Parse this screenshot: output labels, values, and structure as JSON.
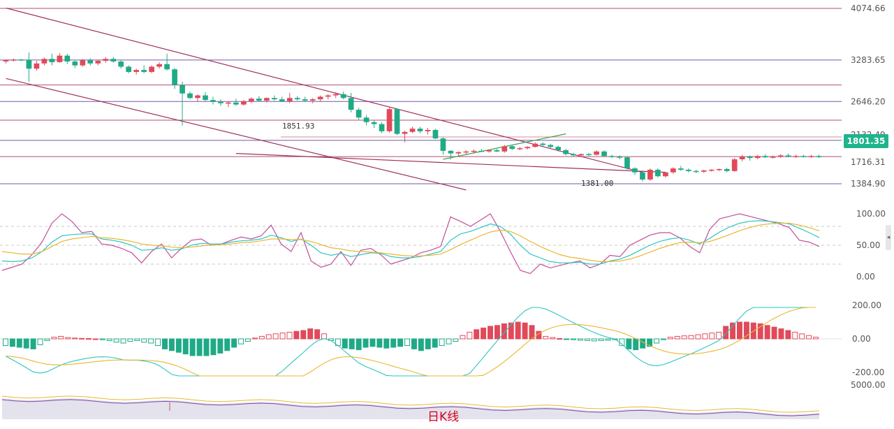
{
  "chart_data": [
    {
      "type": "candlestick",
      "title": "日K线",
      "y_axis_ticks": [
        "4074.66",
        "3283.65",
        "2646.20",
        "2132.49",
        "1716.31",
        "1384.90"
      ],
      "current_price": "1801.35",
      "annotations": {
        "high_level": "1851.93",
        "low_point": "1381.00"
      },
      "horizontal_levels": [
        4074.66,
        3283.65,
        2900,
        2646.2,
        2360,
        2050,
        1801.35,
        1384.9
      ],
      "candles": [
        [
          3260,
          3290,
          3230,
          3280
        ],
        [
          3280,
          3305,
          3260,
          3290
        ],
        [
          3290,
          3300,
          3270,
          3285
        ],
        [
          3285,
          3400,
          2950,
          3150
        ],
        [
          3150,
          3270,
          3120,
          3230
        ],
        [
          3230,
          3320,
          3200,
          3300
        ],
        [
          3300,
          3380,
          3200,
          3250
        ],
        [
          3250,
          3390,
          3240,
          3350
        ],
        [
          3350,
          3380,
          3220,
          3260
        ],
        [
          3260,
          3290,
          3160,
          3200
        ],
        [
          3200,
          3300,
          3180,
          3280
        ],
        [
          3280,
          3310,
          3200,
          3230
        ],
        [
          3230,
          3290,
          3200,
          3270
        ],
        [
          3270,
          3330,
          3240,
          3300
        ],
        [
          3300,
          3330,
          3240,
          3260
        ],
        [
          3260,
          3290,
          3150,
          3180
        ],
        [
          3180,
          3200,
          3080,
          3100
        ],
        [
          3100,
          3150,
          3060,
          3130
        ],
        [
          3130,
          3200,
          3080,
          3100
        ],
        [
          3100,
          3200,
          3080,
          3180
        ],
        [
          3180,
          3250,
          3150,
          3220
        ],
        [
          3220,
          3380,
          3120,
          3140
        ],
        [
          3140,
          3160,
          2840,
          2900
        ],
        [
          2900,
          2950,
          2280,
          2770
        ],
        [
          2770,
          2800,
          2680,
          2700
        ],
        [
          2700,
          2760,
          2650,
          2740
        ],
        [
          2740,
          2790,
          2650,
          2670
        ],
        [
          2670,
          2720,
          2600,
          2640
        ],
        [
          2640,
          2680,
          2580,
          2620
        ],
        [
          2620,
          2650,
          2560,
          2630
        ],
        [
          2630,
          2690,
          2580,
          2600
        ],
        [
          2600,
          2670,
          2580,
          2650
        ],
        [
          2650,
          2710,
          2620,
          2690
        ],
        [
          2690,
          2730,
          2640,
          2660
        ],
        [
          2660,
          2710,
          2630,
          2700
        ],
        [
          2700,
          2740,
          2660,
          2680
        ],
        [
          2680,
          2720,
          2640,
          2650
        ],
        [
          2650,
          2780,
          2620,
          2700
        ],
        [
          2700,
          2730,
          2660,
          2680
        ],
        [
          2680,
          2720,
          2640,
          2660
        ],
        [
          2660,
          2700,
          2620,
          2680
        ],
        [
          2680,
          2740,
          2650,
          2720
        ],
        [
          2720,
          2760,
          2680,
          2740
        ],
        [
          2740,
          2790,
          2700,
          2760
        ],
        [
          2760,
          2800,
          2680,
          2700
        ],
        [
          2700,
          2780,
          2480,
          2520
        ],
        [
          2520,
          2550,
          2360,
          2400
        ],
        [
          2400,
          2440,
          2280,
          2330
        ],
        [
          2330,
          2360,
          2240,
          2300
        ],
        [
          2300,
          2330,
          2160,
          2190
        ],
        [
          2190,
          2560,
          2170,
          2530
        ],
        [
          2530,
          2540,
          2130,
          2150
        ],
        [
          2150,
          2200,
          2020,
          2180
        ],
        [
          2180,
          2260,
          2160,
          2230
        ],
        [
          2230,
          2260,
          2160,
          2190
        ],
        [
          2190,
          2240,
          2140,
          2210
        ],
        [
          2210,
          2230,
          2070,
          2080
        ],
        [
          2080,
          2100,
          1830,
          1890
        ],
        [
          1890,
          1900,
          1760,
          1850
        ],
        [
          1850,
          1880,
          1810,
          1870
        ],
        [
          1870,
          1900,
          1840,
          1880
        ],
        [
          1880,
          1910,
          1850,
          1890
        ],
        [
          1890,
          1920,
          1870,
          1880
        ],
        [
          1880,
          1910,
          1860,
          1900
        ],
        [
          1900,
          1920,
          1870,
          1880
        ],
        [
          1880,
          1980,
          1860,
          1960
        ],
        [
          1960,
          1980,
          1900,
          1920
        ],
        [
          1920,
          1950,
          1900,
          1930
        ],
        [
          1930,
          1960,
          1910,
          1950
        ],
        [
          1950,
          2020,
          1940,
          2000
        ],
        [
          2000,
          2020,
          1960,
          1980
        ],
        [
          1980,
          2000,
          1930,
          1950
        ],
        [
          1950,
          1970,
          1880,
          1900
        ],
        [
          1900,
          1920,
          1820,
          1840
        ],
        [
          1840,
          1860,
          1800,
          1820
        ],
        [
          1820,
          1850,
          1800,
          1840
        ],
        [
          1840,
          1860,
          1810,
          1830
        ],
        [
          1830,
          1900,
          1820,
          1880
        ],
        [
          1880,
          1900,
          1800,
          1810
        ],
        [
          1810,
          1830,
          1780,
          1800
        ],
        [
          1800,
          1820,
          1760,
          1790
        ],
        [
          1790,
          1800,
          1600,
          1620
        ],
        [
          1620,
          1640,
          1520,
          1560
        ],
        [
          1560,
          1590,
          1420,
          1450
        ],
        [
          1450,
          1620,
          1430,
          1600
        ],
        [
          1600,
          1620,
          1480,
          1500
        ],
        [
          1500,
          1570,
          1480,
          1560
        ],
        [
          1560,
          1640,
          1540,
          1620
        ],
        [
          1620,
          1660,
          1580,
          1600
        ],
        [
          1600,
          1620,
          1560,
          1580
        ],
        [
          1580,
          1600,
          1550,
          1570
        ],
        [
          1570,
          1600,
          1550,
          1590
        ],
        [
          1590,
          1610,
          1570,
          1600
        ],
        [
          1600,
          1620,
          1580,
          1610
        ],
        [
          1610,
          1630,
          1560,
          1580
        ],
        [
          1580,
          1780,
          1570,
          1760
        ],
        [
          1760,
          1830,
          1730,
          1800
        ],
        [
          1800,
          1820,
          1740,
          1780
        ],
        [
          1780,
          1830,
          1760,
          1810
        ],
        [
          1810,
          1840,
          1780,
          1790
        ],
        [
          1790,
          1820,
          1770,
          1800
        ],
        [
          1800,
          1840,
          1780,
          1820
        ],
        [
          1820,
          1850,
          1790,
          1800
        ],
        [
          1800,
          1830,
          1780,
          1810
        ],
        [
          1810,
          1830,
          1790,
          1800
        ],
        [
          1800,
          1830,
          1780,
          1810
        ],
        [
          1810,
          1830,
          1780,
          1800
        ]
      ],
      "trendlines": [
        {
          "from": [
            0,
            4080
          ],
          "to": [
            83,
            1560
          ]
        },
        {
          "from": [
            0,
            3000
          ],
          "to": [
            60,
            1290
          ]
        },
        {
          "from": [
            30,
            1850
          ],
          "to": [
            86,
            1560
          ]
        },
        {
          "from": [
            57,
            1760
          ],
          "to": [
            73,
            2150
          ]
        }
      ]
    },
    {
      "type": "line",
      "name": "KDJ",
      "y_axis_ticks": [
        "100.00",
        "50.00",
        "0.00"
      ],
      "ylim": [
        0,
        100
      ],
      "reference_lines": [
        20,
        50,
        80
      ],
      "series": [
        {
          "color": "#c0509a",
          "values": [
            10,
            15,
            20,
            35,
            55,
            85,
            100,
            88,
            70,
            72,
            52,
            50,
            45,
            38,
            22,
            40,
            52,
            30,
            45,
            58,
            60,
            50,
            52,
            58,
            63,
            60,
            65,
            82,
            52,
            40,
            70,
            25,
            15,
            20,
            40,
            18,
            42,
            45,
            35,
            20,
            25,
            30,
            38,
            42,
            48,
            95,
            88,
            80,
            90,
            100,
            72,
            40,
            10,
            5,
            20,
            14,
            18,
            22,
            25,
            14,
            20,
            34,
            32,
            50,
            58,
            66,
            70,
            70,
            62,
            48,
            38,
            75,
            92,
            96,
            100,
            96,
            92,
            88,
            84,
            78,
            58,
            55,
            48
          ]
        },
        {
          "color": "#2ec4c4",
          "values": [
            25,
            24,
            25,
            30,
            40,
            55,
            65,
            67,
            68,
            68,
            60,
            58,
            55,
            50,
            42,
            43,
            46,
            42,
            44,
            50,
            53,
            52,
            52,
            55,
            57,
            58,
            60,
            66,
            62,
            56,
            60,
            50,
            38,
            34,
            37,
            32,
            35,
            38,
            37,
            32,
            30,
            30,
            32,
            36,
            40,
            58,
            68,
            72,
            78,
            84,
            80,
            68,
            50,
            36,
            30,
            24,
            22,
            22,
            23,
            20,
            20,
            25,
            28,
            34,
            42,
            50,
            56,
            60,
            62,
            58,
            52,
            61,
            71,
            79,
            85,
            88,
            89,
            88,
            86,
            84,
            77,
            70,
            62
          ]
        },
        {
          "color": "#e8b830",
          "values": [
            40,
            38,
            36,
            36,
            40,
            48,
            56,
            60,
            62,
            64,
            62,
            61,
            59,
            56,
            52,
            50,
            49,
            47,
            46,
            47,
            49,
            50,
            51,
            52,
            54,
            55,
            57,
            60,
            60,
            59,
            59,
            56,
            51,
            46,
            44,
            41,
            40,
            39,
            38,
            36,
            34,
            33,
            33,
            34,
            36,
            43,
            51,
            58,
            65,
            71,
            74,
            72,
            65,
            56,
            48,
            41,
            35,
            31,
            29,
            26,
            24,
            24,
            25,
            28,
            33,
            39,
            45,
            50,
            54,
            55,
            54,
            56,
            61,
            67,
            73,
            78,
            82,
            84,
            85,
            85,
            82,
            78,
            73
          ]
        }
      ]
    },
    {
      "type": "bar",
      "name": "MACD",
      "y_axis_ticks": [
        "200.00",
        "0.00",
        "-200.00"
      ],
      "ylim": [
        -200,
        200
      ],
      "histogram": [
        -40,
        -45,
        -50,
        -55,
        -60,
        -35,
        -10,
        10,
        15,
        8,
        5,
        3,
        2,
        0,
        -5,
        -10,
        -20,
        -25,
        -15,
        -10,
        -20,
        -25,
        -40,
        -60,
        -70,
        -80,
        -90,
        -100,
        -100,
        -100,
        -95,
        -85,
        -70,
        -50,
        -30,
        -15,
        5,
        15,
        25,
        30,
        35,
        40,
        45,
        50,
        60,
        55,
        30,
        -10,
        -40,
        -55,
        -60,
        -65,
        -50,
        -45,
        -50,
        -55,
        -50,
        -45,
        -40,
        -60,
        -70,
        -60,
        -50,
        -40,
        -30,
        -15,
        20,
        40,
        55,
        65,
        75,
        80,
        90,
        95,
        100,
        95,
        80,
        45,
        15,
        8,
        2,
        -3,
        -5,
        -8,
        -10,
        -12,
        -10,
        -8,
        -5,
        -40,
        -60,
        -65,
        -55,
        -45,
        -25,
        -5,
        10,
        15,
        18,
        20,
        25,
        30,
        35,
        40,
        75,
        95,
        100,
        100,
        95,
        90,
        80,
        70,
        60,
        50,
        40,
        30,
        20,
        10
      ],
      "dif_color": "#2ec4c4",
      "dea_color": "#e8b830"
    },
    {
      "type": "area",
      "name": "volume",
      "y_axis_ticks": [
        "5000.00"
      ]
    }
  ]
}
